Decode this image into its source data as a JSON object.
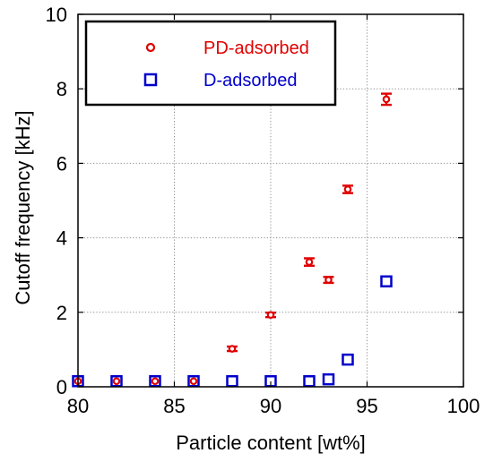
{
  "chart_data": {
    "type": "scatter",
    "title": "",
    "xlabel": "Particle content [wt%]",
    "ylabel": "Cutoff frequency [kHz]",
    "xlim": [
      80,
      100
    ],
    "ylim": [
      0,
      10
    ],
    "xticks": [
      80,
      85,
      90,
      95,
      100
    ],
    "yticks": [
      0,
      2,
      4,
      6,
      8,
      10
    ],
    "grid": true,
    "legend_position": "top-left",
    "series": [
      {
        "name": "PD-adsorbed",
        "color": "#e00000",
        "marker": "circle",
        "x": [
          80,
          82,
          84,
          86,
          88,
          90,
          92,
          93,
          94,
          96
        ],
        "y": [
          0.15,
          0.15,
          0.15,
          0.15,
          1.02,
          1.93,
          3.35,
          2.87,
          5.3,
          7.72
        ],
        "err": [
          0,
          0,
          0,
          0,
          0.06,
          0.06,
          0.1,
          0.08,
          0.1,
          0.15
        ]
      },
      {
        "name": "D-adsorbed",
        "color": "#0000cc",
        "marker": "square",
        "x": [
          80,
          82,
          84,
          86,
          88,
          90,
          92,
          93,
          94,
          96
        ],
        "y": [
          0.15,
          0.15,
          0.15,
          0.15,
          0.15,
          0.15,
          0.15,
          0.2,
          0.73,
          2.83
        ],
        "err": [
          0,
          0,
          0,
          0,
          0,
          0,
          0,
          0.12,
          0.05,
          0.08
        ]
      }
    ]
  }
}
